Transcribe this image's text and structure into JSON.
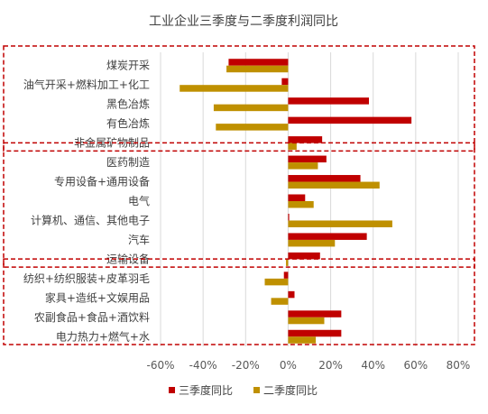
{
  "chart_data": {
    "type": "bar",
    "orientation": "horizontal",
    "title": "工业企业三季度与二季度利润同比",
    "categories": [
      "煤炭开采",
      "油气开采+燃料加工+化工",
      "黑色冶炼",
      "有色冶炼",
      "非金属矿物制品",
      "医药制造",
      "专用设备+通用设备",
      "电气",
      "计算机、通信、其他电子",
      "汽车",
      "运输设备",
      "纺织+纺织服装+皮革羽毛",
      "家具+造纸+文娱用品",
      "农副食品+食品+酒饮料",
      "电力热力+燃气+水"
    ],
    "series": [
      {
        "name": "三季度同比",
        "color": "#C00000",
        "values": [
          -28,
          -3,
          38,
          58,
          16,
          18,
          34,
          8,
          0.5,
          37,
          15,
          -2,
          3,
          25,
          25
        ]
      },
      {
        "name": "二季度同比",
        "color": "#BF9000",
        "values": [
          -29,
          -51,
          -35,
          -34,
          4,
          14,
          43,
          12,
          49,
          22,
          -1,
          -11,
          -8,
          17,
          13
        ]
      }
    ],
    "xlim": [
      -60,
      80
    ],
    "xticks": [
      -60,
      -40,
      -20,
      0,
      20,
      40,
      60,
      80
    ],
    "tick_suffix": "%",
    "grid": "vertical",
    "legend_position": "bottom",
    "groups": [
      {
        "from": 0,
        "to": 4
      },
      {
        "from": 5,
        "to": 10
      },
      {
        "from": 11,
        "to": 14
      }
    ],
    "group_box_color": "#C00000"
  }
}
